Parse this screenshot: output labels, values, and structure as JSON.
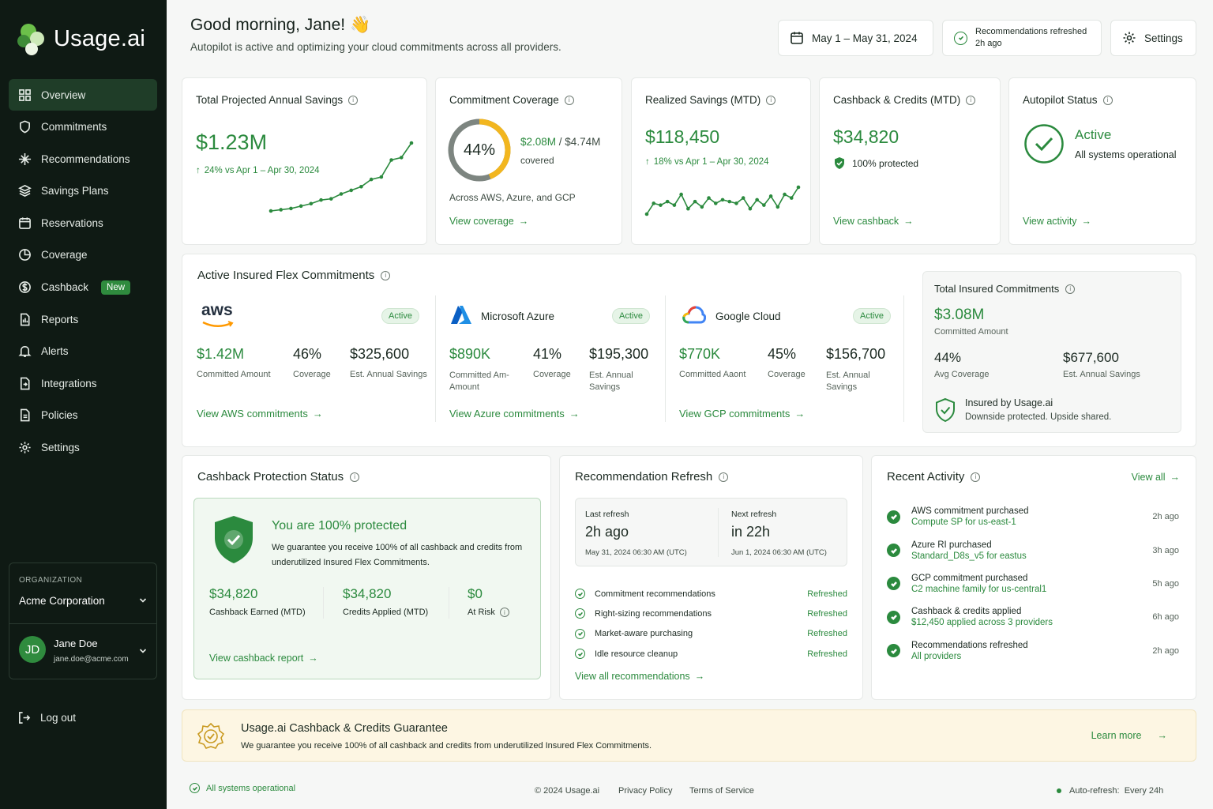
{
  "app": {
    "logo_text": "Usage.ai"
  },
  "sidebar": {
    "items": [
      {
        "label": "Overview",
        "icon": "grid-icon"
      },
      {
        "label": "Commitments",
        "icon": "shield-icon"
      },
      {
        "label": "Recommendations",
        "icon": "sparkle-icon"
      },
      {
        "label": "Savings Plans",
        "icon": "layers-icon"
      },
      {
        "label": "Reservations",
        "icon": "calendar-icon"
      },
      {
        "label": "Coverage",
        "icon": "pie-icon"
      },
      {
        "label": "Cashback",
        "icon": "dollar-icon",
        "badge": "New"
      },
      {
        "label": "Reports",
        "icon": "report-icon"
      },
      {
        "label": "Alerts",
        "icon": "bell-icon"
      },
      {
        "label": "Integrations",
        "icon": "plug-icon"
      },
      {
        "label": "Policies",
        "icon": "policy-icon"
      },
      {
        "label": "Settings",
        "icon": "gear-icon"
      }
    ],
    "org_label": "ORGANIZATION",
    "org_name": "Acme Corporation",
    "user_initials": "JD",
    "user_name": "Jane Doe",
    "user_email": "jane.doe@acme.com",
    "logout": "Log out"
  },
  "header": {
    "greeting": "Good morning, Jane! 👋",
    "subtitle": "Autopilot is active and optimizing your cloud commitments across all providers.",
    "date_range": "May 1 – May 31, 2024",
    "refresh_line1": "Recommendations refreshed",
    "refresh_line2": "2h ago",
    "settings": "Settings"
  },
  "kpis": {
    "savings": {
      "title": "Total Projected Annual Savings",
      "value": "$1.23M",
      "delta": "24% vs Apr 1 – Apr 30, 2024",
      "trend": [
        2,
        3,
        4,
        6,
        8,
        11,
        12,
        16,
        19,
        22,
        28,
        30,
        44,
        46,
        58
      ]
    },
    "coverage": {
      "title": "Commitment Coverage",
      "percent": 44,
      "percent_label": "44%",
      "amount": "$2.08M",
      "total": "/ $4.74M",
      "covered": "covered",
      "note": "Across AWS, Azure, and GCP",
      "link": "View coverage"
    },
    "realized": {
      "title": "Realized Savings (MTD)",
      "value": "$118,450",
      "delta": "18% vs Apr 1 – Apr 30, 2024",
      "trend": [
        10,
        22,
        20,
        24,
        20,
        32,
        16,
        24,
        18,
        28,
        22,
        26,
        24,
        22,
        28,
        16,
        26,
        20,
        30,
        18,
        32,
        28,
        40
      ]
    },
    "cashback": {
      "title": "Cashback & Credits (MTD)",
      "value": "$34,820",
      "protected": "100% protected",
      "link": "View cashback"
    },
    "autopilot": {
      "title": "Autopilot Status",
      "status": "Active",
      "detail": "All systems operational",
      "link": "View activity"
    }
  },
  "flex": {
    "title": "Active Insured Flex Commitments",
    "providers": [
      {
        "name": "aws",
        "status": "Active",
        "amount": "$1.42M",
        "amount_label": "Committed Amount",
        "coverage": "46%",
        "coverage_label": "Coverage",
        "savings": "$325,600",
        "savings_label": "Est. Annual Savings",
        "link": "View AWS commitments"
      },
      {
        "name": "Microsoft Azure",
        "status": "Active",
        "amount": "$890K",
        "amount_label": "Committed Am- Amount",
        "coverage": "41%",
        "coverage_label": "Coverage",
        "savings": "$195,300",
        "savings_label": "Est. Annual Savings",
        "link": "View Azure commitments"
      },
      {
        "name": "Google Cloud",
        "status": "Active",
        "amount": "$770K",
        "amount_label": "Committed Aaont",
        "coverage": "45%",
        "coverage_label": "Coverage",
        "savings": "$156,700",
        "savings_label": "Est. Annual Savings",
        "link": "View GCP commitments"
      }
    ],
    "total": {
      "title": "Total Insured Commitments",
      "value": "$3.08M",
      "value_label": "Committed Amount",
      "avg": "44%",
      "avg_label": "Avg Coverage",
      "savings": "$677,600",
      "savings_label": "Est. Annual Savings",
      "insured": "Insured by Usage.ai",
      "insured_sub": "Downside protected. Upside shared."
    }
  },
  "protection": {
    "title": "Cashback Protection Status",
    "headline": "You are 100% protected",
    "body": "We guarantee you receive 100% of all cashback and credits from underutilized Insured Flex Commitments.",
    "stats": [
      {
        "value": "$34,820",
        "label": "Cashback Earned (MTD)"
      },
      {
        "value": "$34,820",
        "label": "Credits Applied (MTD)"
      },
      {
        "value": "$0",
        "label": "At Risk"
      }
    ],
    "link": "View cashback report"
  },
  "refresh": {
    "title": "Recommendation Refresh",
    "last_label": "Last refresh",
    "last_value": "2h ago",
    "last_date": "May 31, 2024 06:30 AM (UTC)",
    "next_label": "Next refresh",
    "next_value": "in 22h",
    "next_date": "Jun 1, 2024 06:30 AM (UTC)",
    "items": [
      {
        "label": "Commitment recommendations",
        "status": "Refreshed"
      },
      {
        "label": "Right-sizing recommendations",
        "status": "Refreshed"
      },
      {
        "label": "Market-aware purchasing",
        "status": "Refreshed"
      },
      {
        "label": "Idle resource cleanup",
        "status": "Refreshed"
      }
    ],
    "link": "View all recommendations"
  },
  "activity": {
    "title": "Recent Activity",
    "view_all": "View all",
    "items": [
      {
        "title": "AWS commitment purchased",
        "detail": "Compute SP for us-east-1",
        "time": "2h ago"
      },
      {
        "title": "Azure RI purchased",
        "detail": "Standard_D8s_v5 for eastus",
        "time": "3h ago"
      },
      {
        "title": "GCP commitment purchased",
        "detail": "C2 machine family for us-central1",
        "time": "5h ago"
      },
      {
        "title": "Cashback & credits applied",
        "detail": "$12,450 applied across 3 providers",
        "time": "6h ago"
      },
      {
        "title": "Recommendations refreshed",
        "detail": "All providers",
        "time": "2h ago"
      }
    ]
  },
  "banner": {
    "title": "Usage.ai Cashback & Credits Guarantee",
    "body": "We guarantee you receive 100% of all cashback and credits from underutilized Insured Flex Commitments.",
    "link": "Learn more"
  },
  "footer": {
    "status": "All systems operational",
    "copyright": "© 2024 Usage.ai",
    "privacy": "Privacy Policy",
    "terms": "Terms of Service",
    "autorefresh": "Auto-refresh:  Every 24h"
  },
  "colors": {
    "accent": "#2b8a3e",
    "sidebar": "#0f1a14",
    "gauge": "#f2b61f",
    "banner": "#fdf6e3"
  }
}
